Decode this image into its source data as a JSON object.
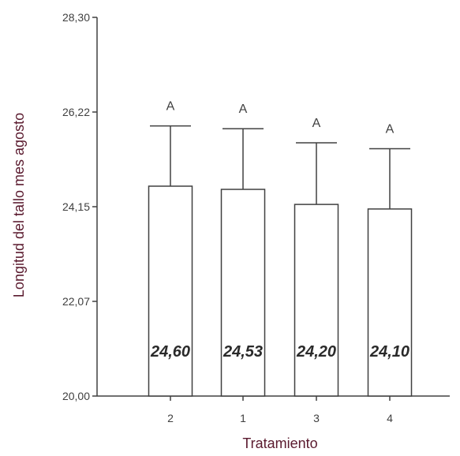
{
  "chart_data": {
    "type": "bar",
    "xlabel": "Tratamiento",
    "ylabel": "Longitud del tallo mes  agosto",
    "ylim": [
      20.0,
      28.3
    ],
    "yticks": [
      "20,00",
      "22,07",
      "24,15",
      "26,22",
      "28,30"
    ],
    "categories": [
      "2",
      "1",
      "3",
      "4"
    ],
    "values": [
      24.6,
      24.53,
      24.2,
      24.1
    ],
    "value_labels": [
      "24,60",
      "24,53",
      "24,20",
      "24,10"
    ],
    "error_upper": [
      25.92,
      25.86,
      25.55,
      25.42
    ],
    "group_letters": [
      "A",
      "A",
      "A",
      "A"
    ],
    "grid": false,
    "legend": "none"
  },
  "colors": {
    "axis": "#404040",
    "bar_fill": "#ffffff",
    "bar_stroke": "#404040",
    "axis_title": "#5a1a2e"
  }
}
